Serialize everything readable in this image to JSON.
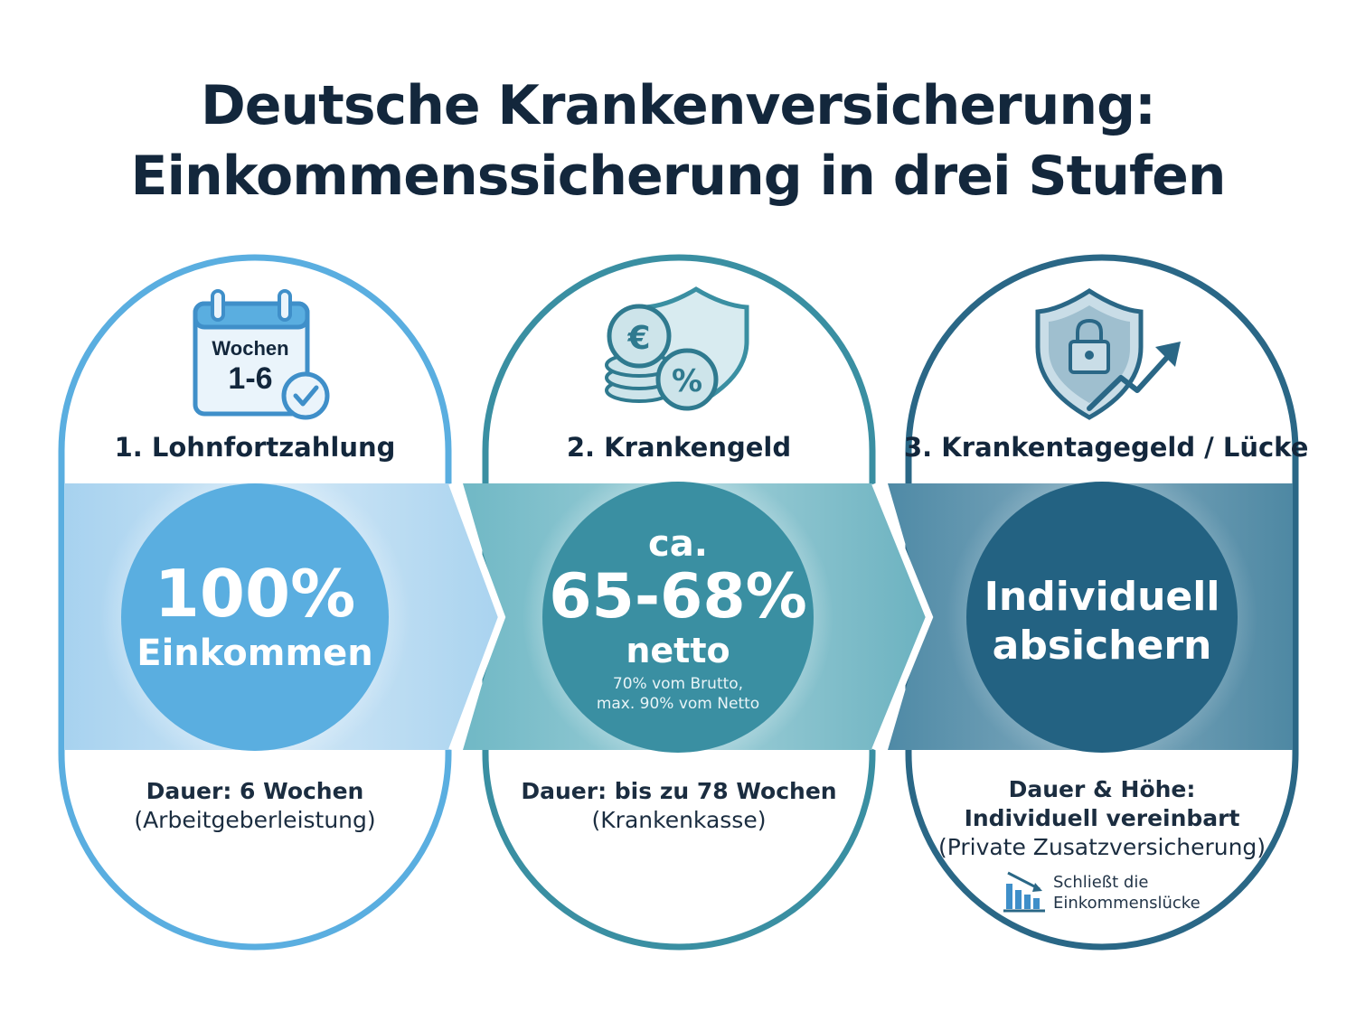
{
  "title": {
    "line1": "Deutsche Krankenversicherung:",
    "line2": "Einkommenssicherung in drei Stufen"
  },
  "colors": {
    "stage1": "#5aaee0",
    "stage2": "#3a8fa2",
    "stage3": "#2a6786",
    "text_dark": "#13273c"
  },
  "stages": [
    {
      "title": "1. Lohnfortzahlung",
      "icon": "calendar-check-icon",
      "icon_label_line1": "Wochen",
      "icon_label_line2": "1-6",
      "circle_main": "100%",
      "circle_sub": "Einkommen",
      "desc_bold": "Dauer: 6 Wochen",
      "desc_normal": "(Arbeitgeberleistung)"
    },
    {
      "title": "2. Krankengeld",
      "icon": "euro-coins-shield-percent-icon",
      "circle_prefix": "ca.",
      "circle_main": "65-68%",
      "circle_sub": "netto",
      "circle_note_line1": "70% vom Brutto,",
      "circle_note_line2": "max. 90% vom Netto",
      "desc_bold": "Dauer: bis zu 78 Wochen",
      "desc_normal": "(Krankenkasse)"
    },
    {
      "title": "3. Krankentagegeld / Lücke",
      "icon": "shield-lock-arrow-icon",
      "circle_line1": "Individuell",
      "circle_line2": "absichern",
      "desc_bold_line1": "Dauer & Höhe:",
      "desc_bold_line2": "Individuell vereinbart",
      "desc_normal": "(Private Zusatzversicherung)",
      "note_icon": "bar-chart-down-icon",
      "note_line1": "Schließt die",
      "note_line2": "Einkommenslücke"
    }
  ]
}
